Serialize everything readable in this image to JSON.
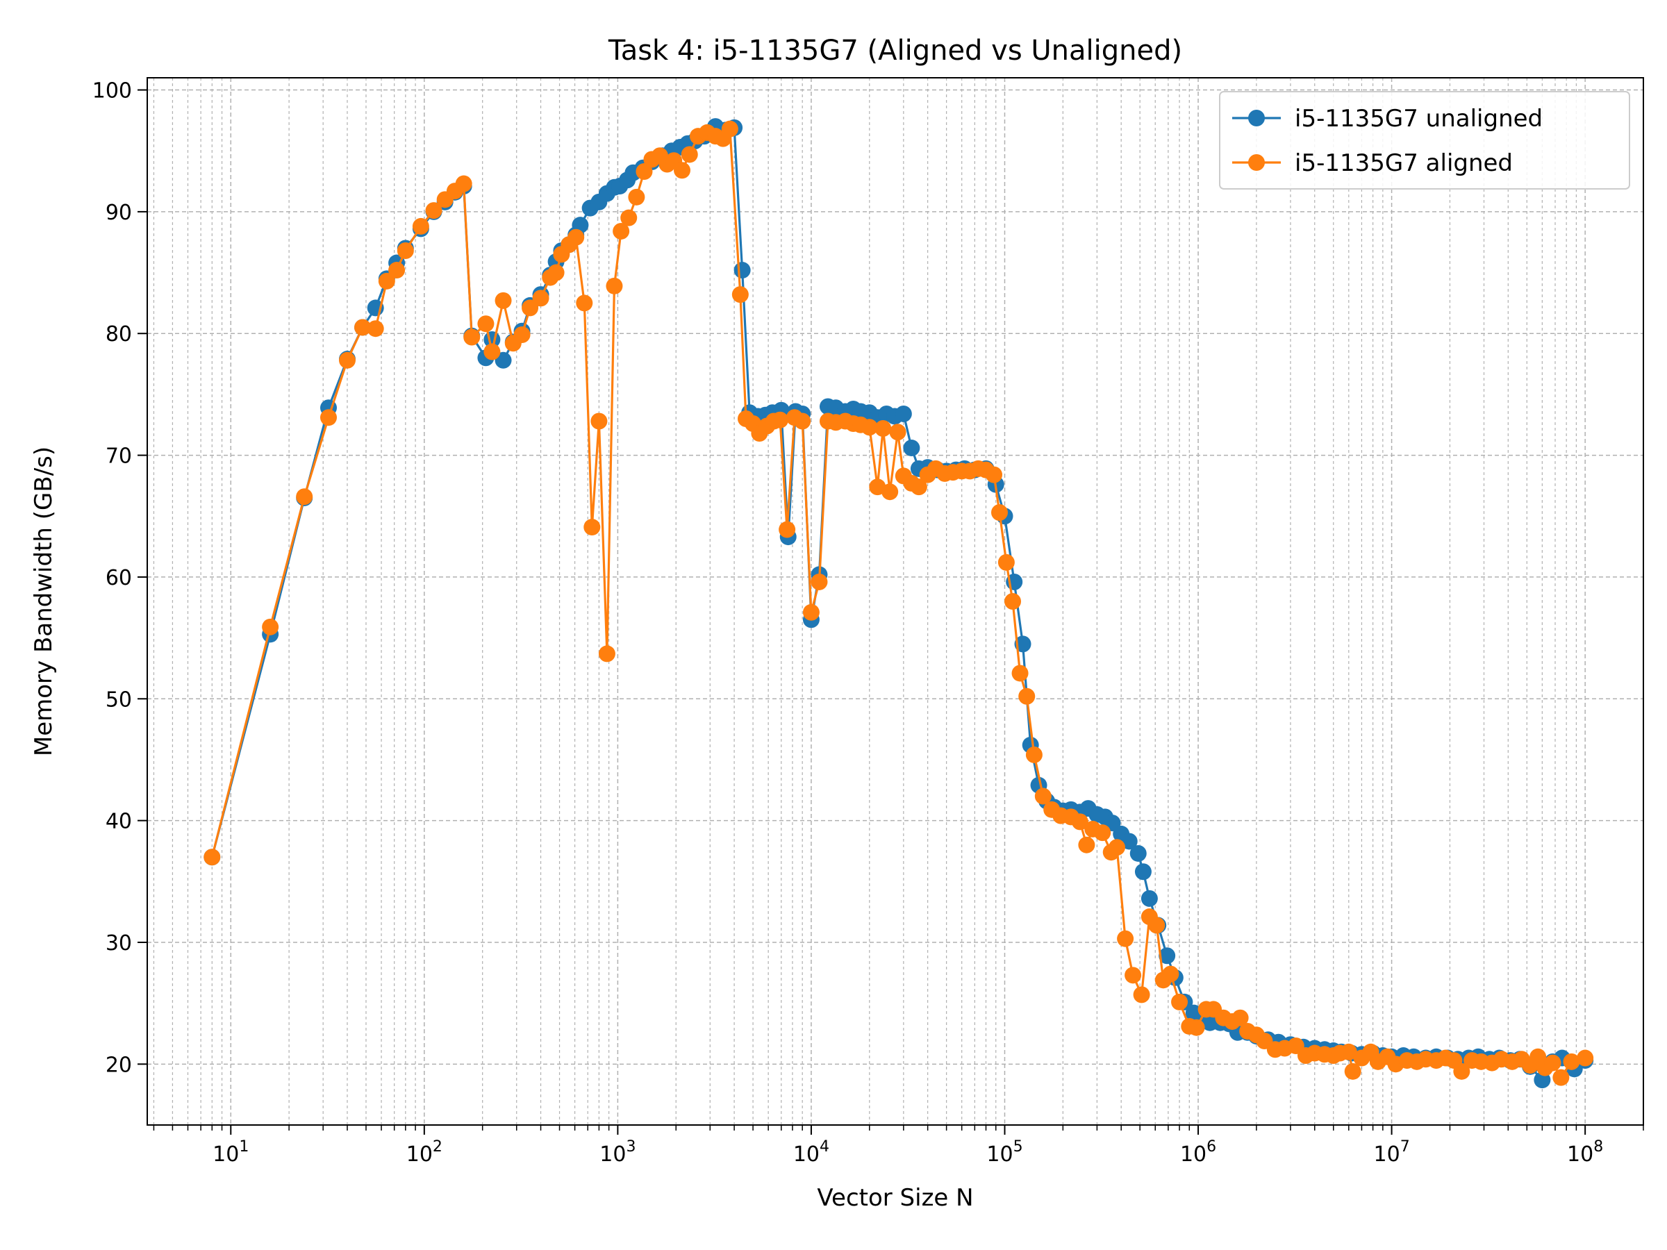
{
  "chart_data": {
    "type": "line",
    "title": "Task 4: i5-1135G7 (Aligned vs Unaligned)",
    "xlabel": "Vector Size N",
    "ylabel": "Memory Bandwidth (GB/s)",
    "xscale": "log",
    "xlim": [
      3.7,
      200000000
    ],
    "ylim": [
      15,
      101
    ],
    "x_ticks": [
      {
        "base": "10",
        "exp": "1",
        "value": 10
      },
      {
        "base": "10",
        "exp": "2",
        "value": 100
      },
      {
        "base": "10",
        "exp": "3",
        "value": 1000
      },
      {
        "base": "10",
        "exp": "4",
        "value": 10000
      },
      {
        "base": "10",
        "exp": "5",
        "value": 100000
      },
      {
        "base": "10",
        "exp": "6",
        "value": 1000000
      },
      {
        "base": "10",
        "exp": "7",
        "value": 10000000
      },
      {
        "base": "10",
        "exp": "8",
        "value": 100000000
      }
    ],
    "y_ticks": [
      "20",
      "30",
      "40",
      "50",
      "60",
      "70",
      "80",
      "90",
      "100"
    ],
    "grid": true,
    "legend_position": "top-right",
    "series": [
      {
        "name": "i5-1135G7 unaligned",
        "color": "#1f77b4",
        "points": [
          [
            8,
            37.0
          ],
          [
            16,
            55.3
          ],
          [
            24,
            66.5
          ],
          [
            32,
            73.9
          ],
          [
            40,
            77.9
          ],
          [
            48,
            80.5
          ],
          [
            56,
            82.1
          ],
          [
            64,
            84.5
          ],
          [
            72,
            85.8
          ],
          [
            80,
            87.0
          ],
          [
            96,
            88.6
          ],
          [
            112,
            90.0
          ],
          [
            128,
            90.8
          ],
          [
            144,
            91.6
          ],
          [
            160,
            92.1
          ],
          [
            176,
            79.8
          ],
          [
            208,
            78.0
          ],
          [
            224,
            79.5
          ],
          [
            256,
            77.8
          ],
          [
            288,
            79.3
          ],
          [
            320,
            80.2
          ],
          [
            352,
            82.3
          ],
          [
            400,
            83.2
          ],
          [
            448,
            84.8
          ],
          [
            480,
            85.9
          ],
          [
            512,
            86.8
          ],
          [
            560,
            87.3
          ],
          [
            608,
            88.1
          ],
          [
            640,
            88.9
          ],
          [
            720,
            90.3
          ],
          [
            800,
            90.8
          ],
          [
            880,
            91.5
          ],
          [
            960,
            92.0
          ],
          [
            1024,
            92.1
          ],
          [
            1120,
            92.6
          ],
          [
            1200,
            93.2
          ],
          [
            1350,
            93.6
          ],
          [
            1500,
            94.1
          ],
          [
            1700,
            94.6
          ],
          [
            1900,
            95.0
          ],
          [
            2100,
            95.3
          ],
          [
            2300,
            95.6
          ],
          [
            2500,
            95.8
          ],
          [
            2800,
            96.2
          ],
          [
            3200,
            97.0
          ],
          [
            3600,
            96.7
          ],
          [
            4000,
            96.9
          ],
          [
            4400,
            85.2
          ],
          [
            4800,
            73.5
          ],
          [
            5300,
            73.2
          ],
          [
            5800,
            73.3
          ],
          [
            6300,
            73.5
          ],
          [
            7000,
            73.7
          ],
          [
            7600,
            63.3
          ],
          [
            8300,
            73.6
          ],
          [
            9000,
            73.4
          ],
          [
            10000,
            56.5
          ],
          [
            11000,
            60.2
          ],
          [
            12200,
            74.0
          ],
          [
            13400,
            73.9
          ],
          [
            15000,
            73.6
          ],
          [
            16500,
            73.8
          ],
          [
            18000,
            73.6
          ],
          [
            20000,
            73.5
          ],
          [
            22000,
            73.1
          ],
          [
            24500,
            73.4
          ],
          [
            27000,
            73.2
          ],
          [
            30000,
            73.4
          ],
          [
            33000,
            70.6
          ],
          [
            36000,
            68.9
          ],
          [
            40000,
            69.0
          ],
          [
            45000,
            68.8
          ],
          [
            50000,
            68.7
          ],
          [
            56000,
            68.8
          ],
          [
            62000,
            68.9
          ],
          [
            70000,
            68.8
          ],
          [
            80000,
            68.9
          ],
          [
            90000,
            67.6
          ],
          [
            100000,
            65.0
          ],
          [
            112000,
            59.6
          ],
          [
            124000,
            54.5
          ],
          [
            136000,
            46.2
          ],
          [
            150000,
            42.9
          ],
          [
            165000,
            41.6
          ],
          [
            180000,
            41.1
          ],
          [
            200000,
            40.8
          ],
          [
            220000,
            40.9
          ],
          [
            245000,
            40.7
          ],
          [
            270000,
            41.0
          ],
          [
            300000,
            40.5
          ],
          [
            330000,
            40.3
          ],
          [
            360000,
            39.8
          ],
          [
            400000,
            38.9
          ],
          [
            440000,
            38.3
          ],
          [
            490000,
            37.3
          ],
          [
            520000,
            35.8
          ],
          [
            560000,
            33.6
          ],
          [
            620000,
            31.4
          ],
          [
            690000,
            28.9
          ],
          [
            760000,
            27.1
          ],
          [
            850000,
            25.1
          ],
          [
            950000,
            24.2
          ],
          [
            1050000,
            23.7
          ],
          [
            1150000,
            23.4
          ],
          [
            1300000,
            23.4
          ],
          [
            1450000,
            23.3
          ],
          [
            1600000,
            22.6
          ],
          [
            1800000,
            22.6
          ],
          [
            2000000,
            22.3
          ],
          [
            2300000,
            22.0
          ],
          [
            2600000,
            21.8
          ],
          [
            3000000,
            21.6
          ],
          [
            3500000,
            21.4
          ],
          [
            4000000,
            21.3
          ],
          [
            4500000,
            21.2
          ],
          [
            5000000,
            21.1
          ],
          [
            5500000,
            21.0
          ],
          [
            6200000,
            20.9
          ],
          [
            7000000,
            20.8
          ],
          [
            8000000,
            20.9
          ],
          [
            9000000,
            20.7
          ],
          [
            10000000,
            20.6
          ],
          [
            11500000,
            20.7
          ],
          [
            13000000,
            20.6
          ],
          [
            15000000,
            20.5
          ],
          [
            17000000,
            20.6
          ],
          [
            19500000,
            20.5
          ],
          [
            22000000,
            20.4
          ],
          [
            25000000,
            20.5
          ],
          [
            28000000,
            20.6
          ],
          [
            32000000,
            20.4
          ],
          [
            36000000,
            20.5
          ],
          [
            41000000,
            20.3
          ],
          [
            46000000,
            20.4
          ],
          [
            52000000,
            19.8
          ],
          [
            60000000,
            18.7
          ],
          [
            68000000,
            20.2
          ],
          [
            76000000,
            20.5
          ],
          [
            88000000,
            19.6
          ],
          [
            100000000,
            20.3
          ]
        ]
      },
      {
        "name": "i5-1135G7 aligned",
        "color": "#ff7f0e",
        "points": [
          [
            8,
            37.0
          ],
          [
            16,
            55.9
          ],
          [
            24,
            66.6
          ],
          [
            32,
            73.1
          ],
          [
            40,
            77.8
          ],
          [
            48,
            80.5
          ],
          [
            56,
            80.4
          ],
          [
            64,
            84.3
          ],
          [
            72,
            85.2
          ],
          [
            80,
            86.8
          ],
          [
            96,
            88.8
          ],
          [
            112,
            90.1
          ],
          [
            128,
            91.0
          ],
          [
            144,
            91.7
          ],
          [
            160,
            92.3
          ],
          [
            176,
            79.7
          ],
          [
            208,
            80.8
          ],
          [
            224,
            78.5
          ],
          [
            256,
            82.7
          ],
          [
            288,
            79.2
          ],
          [
            320,
            79.9
          ],
          [
            352,
            82.1
          ],
          [
            400,
            82.9
          ],
          [
            448,
            84.6
          ],
          [
            480,
            85.0
          ],
          [
            512,
            86.5
          ],
          [
            560,
            87.3
          ],
          [
            608,
            87.9
          ],
          [
            672,
            82.5
          ],
          [
            736,
            64.1
          ],
          [
            800,
            72.8
          ],
          [
            880,
            53.7
          ],
          [
            960,
            83.9
          ],
          [
            1040,
            88.4
          ],
          [
            1140,
            89.5
          ],
          [
            1250,
            91.2
          ],
          [
            1370,
            93.3
          ],
          [
            1500,
            94.3
          ],
          [
            1650,
            94.6
          ],
          [
            1800,
            93.9
          ],
          [
            1950,
            94.2
          ],
          [
            2150,
            93.4
          ],
          [
            2350,
            94.7
          ],
          [
            2600,
            96.2
          ],
          [
            2900,
            96.5
          ],
          [
            3200,
            96.2
          ],
          [
            3500,
            96.0
          ],
          [
            3800,
            96.8
          ],
          [
            4300,
            83.2
          ],
          [
            4600,
            73.0
          ],
          [
            5000,
            72.6
          ],
          [
            5400,
            71.8
          ],
          [
            5900,
            72.4
          ],
          [
            6400,
            72.8
          ],
          [
            6900,
            72.9
          ],
          [
            7500,
            63.9
          ],
          [
            8200,
            73.1
          ],
          [
            9000,
            72.8
          ],
          [
            10000,
            57.1
          ],
          [
            11000,
            59.6
          ],
          [
            12200,
            72.8
          ],
          [
            13400,
            72.7
          ],
          [
            15000,
            72.8
          ],
          [
            16500,
            72.6
          ],
          [
            18000,
            72.5
          ],
          [
            20000,
            72.3
          ],
          [
            22000,
            67.4
          ],
          [
            23500,
            72.2
          ],
          [
            25500,
            67.0
          ],
          [
            28000,
            71.9
          ],
          [
            30000,
            68.3
          ],
          [
            33000,
            67.7
          ],
          [
            36000,
            67.4
          ],
          [
            40000,
            68.4
          ],
          [
            44000,
            68.9
          ],
          [
            49000,
            68.5
          ],
          [
            54000,
            68.6
          ],
          [
            60000,
            68.7
          ],
          [
            66000,
            68.7
          ],
          [
            73000,
            68.9
          ],
          [
            80000,
            68.8
          ],
          [
            88000,
            68.4
          ],
          [
            94000,
            65.3
          ],
          [
            102000,
            61.2
          ],
          [
            110000,
            58.0
          ],
          [
            120000,
            52.1
          ],
          [
            130000,
            50.2
          ],
          [
            142000,
            45.4
          ],
          [
            158000,
            42.0
          ],
          [
            175000,
            40.9
          ],
          [
            195000,
            40.4
          ],
          [
            220000,
            40.3
          ],
          [
            245000,
            39.9
          ],
          [
            265000,
            38.0
          ],
          [
            285000,
            39.3
          ],
          [
            320000,
            39.0
          ],
          [
            355000,
            37.4
          ],
          [
            380000,
            37.8
          ],
          [
            420000,
            30.3
          ],
          [
            460000,
            27.3
          ],
          [
            510000,
            25.7
          ],
          [
            560000,
            32.1
          ],
          [
            610000,
            31.4
          ],
          [
            660000,
            26.9
          ],
          [
            720000,
            27.4
          ],
          [
            800000,
            25.1
          ],
          [
            900000,
            23.1
          ],
          [
            980000,
            23.0
          ],
          [
            1100000,
            24.5
          ],
          [
            1200000,
            24.5
          ],
          [
            1350000,
            23.8
          ],
          [
            1500000,
            23.5
          ],
          [
            1650000,
            23.8
          ],
          [
            1800000,
            22.7
          ],
          [
            2000000,
            22.4
          ],
          [
            2200000,
            21.9
          ],
          [
            2500000,
            21.2
          ],
          [
            2800000,
            21.3
          ],
          [
            3200000,
            21.5
          ],
          [
            3600000,
            20.7
          ],
          [
            4000000,
            20.9
          ],
          [
            4500000,
            20.8
          ],
          [
            5000000,
            20.7
          ],
          [
            5400000,
            20.9
          ],
          [
            6000000,
            21.0
          ],
          [
            6300000,
            19.4
          ],
          [
            7000000,
            20.5
          ],
          [
            7800000,
            21.0
          ],
          [
            8500000,
            20.2
          ],
          [
            9500000,
            20.6
          ],
          [
            10500000,
            20.0
          ],
          [
            12000000,
            20.3
          ],
          [
            13500000,
            20.2
          ],
          [
            15000000,
            20.4
          ],
          [
            17000000,
            20.3
          ],
          [
            19000000,
            20.5
          ],
          [
            21000000,
            20.3
          ],
          [
            23000000,
            19.4
          ],
          [
            26000000,
            20.3
          ],
          [
            29000000,
            20.2
          ],
          [
            33000000,
            20.1
          ],
          [
            37000000,
            20.4
          ],
          [
            42000000,
            20.2
          ],
          [
            47000000,
            20.4
          ],
          [
            52000000,
            19.9
          ],
          [
            57000000,
            20.6
          ],
          [
            62000000,
            19.7
          ],
          [
            68000000,
            20.1
          ],
          [
            75000000,
            18.9
          ],
          [
            85000000,
            20.2
          ],
          [
            100000000,
            20.5
          ]
        ]
      }
    ]
  }
}
